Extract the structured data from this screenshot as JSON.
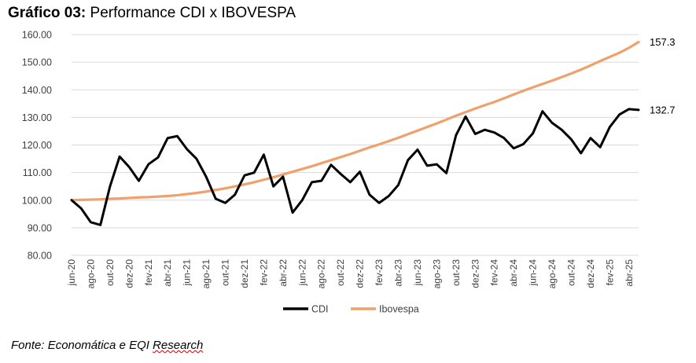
{
  "title": {
    "bold": "Gráfico 03:",
    "rest": " Performance CDI x IBOVESPA"
  },
  "source": {
    "prefix": "Fonte: Economática e EQI ",
    "underlined": "Research"
  },
  "chart_data": {
    "type": "line",
    "title": "Performance CDI x IBOVESPA",
    "xlabel": "",
    "ylabel": "",
    "ylim": [
      80,
      160
    ],
    "yticks": [
      "80.00",
      "90.00",
      "100.00",
      "110.00",
      "120.00",
      "130.00",
      "140.00",
      "150.00",
      "160.00"
    ],
    "grid": true,
    "legend_position": "bottom",
    "x": [
      "jun-20",
      "jul-20",
      "ago-20",
      "set-20",
      "out-20",
      "nov-20",
      "dez-20",
      "jan-21",
      "fev-21",
      "mar-21",
      "abr-21",
      "mai-21",
      "jun-21",
      "jul-21",
      "ago-21",
      "set-21",
      "out-21",
      "nov-21",
      "dez-21",
      "jan-22",
      "fev-22",
      "mar-22",
      "abr-22",
      "mai-22",
      "jun-22",
      "jul-22",
      "ago-22",
      "set-22",
      "out-22",
      "nov-22",
      "dez-22",
      "jan-23",
      "fev-23",
      "mar-23",
      "abr-23",
      "mai-23",
      "jun-23",
      "jul-23",
      "ago-23",
      "set-23",
      "out-23",
      "nov-23",
      "dez-23",
      "jan-24",
      "fev-24",
      "mar-24",
      "abr-24",
      "mai-24",
      "jun-24",
      "jul-24",
      "ago-24",
      "set-24",
      "out-24",
      "nov-24",
      "dez-24",
      "jan-25",
      "fev-25",
      "mar-25",
      "abr-25",
      "mai-25"
    ],
    "tick_labels": [
      "jun-20",
      "ago-20",
      "out-20",
      "dez-20",
      "fev-21",
      "abr-21",
      "jun-21",
      "ago-21",
      "out-21",
      "dez-21",
      "fev-22",
      "abr-22",
      "jun-22",
      "ago-22",
      "out-22",
      "dez-22",
      "fev-23",
      "abr-23",
      "jun-23",
      "ago-23",
      "out-23",
      "dez-23",
      "fev-24",
      "abr-24",
      "jun-24",
      "ago-24",
      "out-24",
      "dez-24",
      "fev-25",
      "abr-25"
    ],
    "series": [
      {
        "name": "CDI",
        "color": "#000000",
        "values": [
          100.0,
          97.0,
          92.0,
          91.0,
          105.0,
          115.8,
          112.0,
          107.0,
          113.0,
          115.5,
          122.5,
          123.2,
          118.5,
          115.0,
          108.5,
          100.5,
          99.0,
          102.0,
          109.0,
          110.0,
          116.5,
          105.0,
          108.5,
          95.5,
          100.0,
          106.5,
          107.0,
          112.8,
          109.5,
          106.5,
          110.3,
          102.0,
          99.0,
          101.5,
          105.5,
          114.5,
          118.3,
          112.5,
          113.0,
          109.8,
          123.5,
          130.3,
          124.0,
          125.5,
          124.5,
          122.5,
          118.8,
          120.3,
          124.2,
          132.2,
          128.0,
          125.5,
          122.0,
          117.0,
          122.5,
          119.2,
          126.5,
          131.0,
          133.0,
          132.7
        ],
        "end_label": "132.7"
      },
      {
        "name": "Ibovespa",
        "color": "#F0A06B",
        "values": [
          100.0,
          100.1,
          100.2,
          100.3,
          100.5,
          100.6,
          100.8,
          101.0,
          101.1,
          101.3,
          101.5,
          101.8,
          102.2,
          102.6,
          103.1,
          103.7,
          104.3,
          105.0,
          105.7,
          106.5,
          107.4,
          108.3,
          109.3,
          110.3,
          111.3,
          112.3,
          113.4,
          114.5,
          115.6,
          116.7,
          117.9,
          119.1,
          120.2,
          121.4,
          122.6,
          123.9,
          125.2,
          126.5,
          127.8,
          129.2,
          130.6,
          131.9,
          133.2,
          134.4,
          135.6,
          136.9,
          138.3,
          139.6,
          140.9,
          142.1,
          143.3,
          144.6,
          145.9,
          147.3,
          148.8,
          150.4,
          151.9,
          153.4,
          155.2,
          157.3
        ],
        "end_label": "157.3"
      }
    ]
  }
}
